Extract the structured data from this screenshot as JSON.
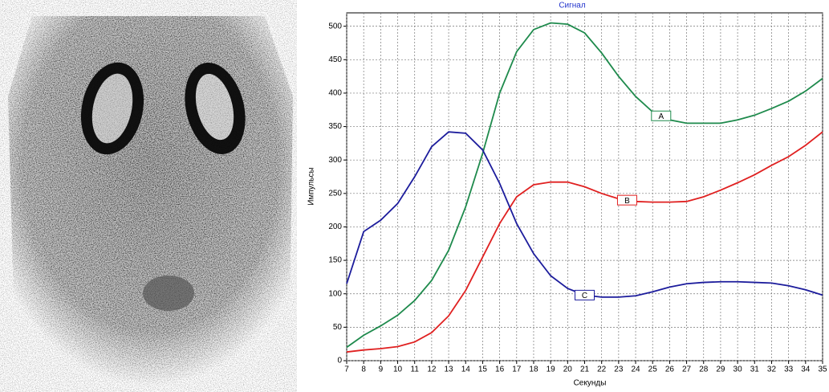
{
  "chart_data": {
    "type": "line",
    "title": "Сигнал",
    "xlabel": "Секунды",
    "ylabel": "Импульсы",
    "x": [
      7,
      8,
      9,
      10,
      11,
      12,
      13,
      14,
      15,
      16,
      17,
      18,
      19,
      20,
      21,
      22,
      23,
      24,
      25,
      26,
      27,
      28,
      29,
      30,
      31,
      32,
      33,
      34,
      35
    ],
    "xlim": [
      7,
      35
    ],
    "xticks": [
      7,
      8,
      9,
      10,
      11,
      12,
      13,
      14,
      15,
      16,
      17,
      18,
      19,
      20,
      21,
      22,
      23,
      24,
      25,
      26,
      27,
      28,
      29,
      30,
      31,
      32,
      33,
      34,
      35
    ],
    "ylim": [
      0,
      520
    ],
    "yticks": [
      0,
      50,
      100,
      150,
      200,
      250,
      300,
      350,
      400,
      450,
      500
    ],
    "grid": true,
    "series": [
      {
        "name": "A",
        "color": "#1e8a4c",
        "values": [
          20,
          38,
          52,
          68,
          90,
          120,
          165,
          230,
          310,
          400,
          462,
          495,
          505,
          503,
          490,
          460,
          425,
          395,
          372,
          360,
          355,
          355,
          355,
          360,
          367,
          377,
          388,
          403,
          422
        ]
      },
      {
        "name": "B",
        "color": "#e02020",
        "values": [
          13,
          16,
          18,
          21,
          28,
          42,
          67,
          105,
          155,
          205,
          245,
          263,
          267,
          267,
          260,
          250,
          242,
          238,
          237,
          237,
          238,
          245,
          255,
          266,
          278,
          292,
          305,
          322,
          342
        ]
      },
      {
        "name": "C",
        "color": "#1c1c9c",
        "values": [
          115,
          193,
          210,
          235,
          275,
          320,
          342,
          340,
          315,
          265,
          205,
          160,
          127,
          108,
          98,
          95,
          95,
          97,
          103,
          110,
          115,
          117,
          118,
          118,
          117,
          116,
          112,
          106,
          98
        ]
      }
    ]
  }
}
